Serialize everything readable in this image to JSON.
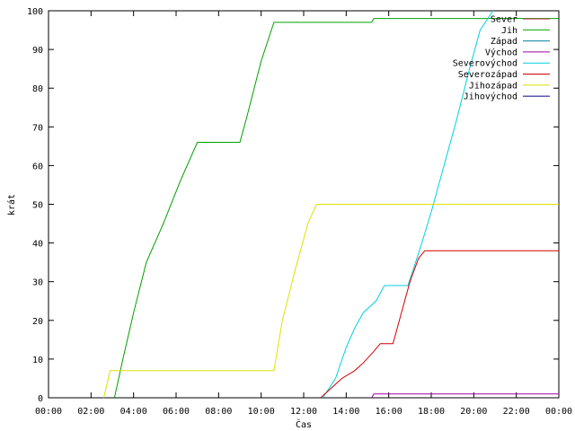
{
  "chart_data": {
    "type": "line",
    "xlabel": "Čas",
    "ylabel": "krát",
    "xlim": [
      0,
      24
    ],
    "ylim": [
      0,
      100
    ],
    "x_ticks": [
      {
        "value": 0,
        "label": "00:00"
      },
      {
        "value": 2,
        "label": "02:00"
      },
      {
        "value": 4,
        "label": "04:00"
      },
      {
        "value": 6,
        "label": "06:00"
      },
      {
        "value": 8,
        "label": "08:00"
      },
      {
        "value": 10,
        "label": "10:00"
      },
      {
        "value": 12,
        "label": "12:00"
      },
      {
        "value": 14,
        "label": "14:00"
      },
      {
        "value": 16,
        "label": "16:00"
      },
      {
        "value": 18,
        "label": "18:00"
      },
      {
        "value": 20,
        "label": "20:00"
      },
      {
        "value": 22,
        "label": "22:00"
      },
      {
        "value": 24,
        "label": "00:00"
      }
    ],
    "y_ticks": [
      0,
      10,
      20,
      30,
      40,
      50,
      60,
      70,
      80,
      90,
      100
    ],
    "grid": false,
    "legend_position": "top-right",
    "series": [
      {
        "name": "Sever",
        "color": "#a52a2a",
        "points": []
      },
      {
        "name": "Jih",
        "color": "#00a000",
        "points": [
          [
            3.1,
            0
          ],
          [
            3.5,
            10
          ],
          [
            4.0,
            22
          ],
          [
            4.6,
            35
          ],
          [
            5.4,
            45
          ],
          [
            6.2,
            56
          ],
          [
            7.0,
            66
          ],
          [
            9.0,
            66
          ],
          [
            9.3,
            72
          ],
          [
            10.0,
            87
          ],
          [
            10.6,
            97
          ],
          [
            15.2,
            97
          ],
          [
            15.3,
            98
          ],
          [
            24,
            98
          ]
        ]
      },
      {
        "name": "Západ",
        "color": "#0080a0",
        "points": []
      },
      {
        "name": "Východ",
        "color": "#a000a0",
        "points": [
          [
            15.2,
            0
          ],
          [
            15.3,
            1
          ],
          [
            24,
            1
          ]
        ]
      },
      {
        "name": "Severovýchod",
        "color": "#00d0e0",
        "points": [
          [
            12.9,
            0
          ],
          [
            13.5,
            5
          ],
          [
            14.0,
            13
          ],
          [
            14.4,
            18
          ],
          [
            14.8,
            22
          ],
          [
            15.4,
            25
          ],
          [
            15.8,
            29
          ],
          [
            16.9,
            29
          ],
          [
            17.5,
            39
          ],
          [
            18.0,
            48
          ],
          [
            18.6,
            60
          ],
          [
            19.2,
            72
          ],
          [
            19.8,
            85
          ],
          [
            20.3,
            95
          ],
          [
            20.9,
            100
          ]
        ]
      },
      {
        "name": "Severozápad",
        "color": "#d00000",
        "points": [
          [
            12.8,
            0
          ],
          [
            13.2,
            2
          ],
          [
            13.8,
            5
          ],
          [
            14.4,
            7
          ],
          [
            14.8,
            9
          ],
          [
            15.3,
            12
          ],
          [
            15.6,
            14
          ],
          [
            16.2,
            14
          ],
          [
            16.5,
            20
          ],
          [
            17.0,
            30
          ],
          [
            17.4,
            36
          ],
          [
            17.7,
            38
          ],
          [
            24,
            38
          ]
        ]
      },
      {
        "name": "Jihozápad",
        "color": "#e0e000",
        "points": [
          [
            2.6,
            0
          ],
          [
            2.9,
            7
          ],
          [
            10.6,
            7
          ],
          [
            11.0,
            20
          ],
          [
            11.6,
            33
          ],
          [
            12.2,
            45
          ],
          [
            12.6,
            50
          ],
          [
            24,
            50
          ]
        ]
      },
      {
        "name": "Jihovýchod",
        "color": "#000080",
        "points": []
      }
    ]
  }
}
